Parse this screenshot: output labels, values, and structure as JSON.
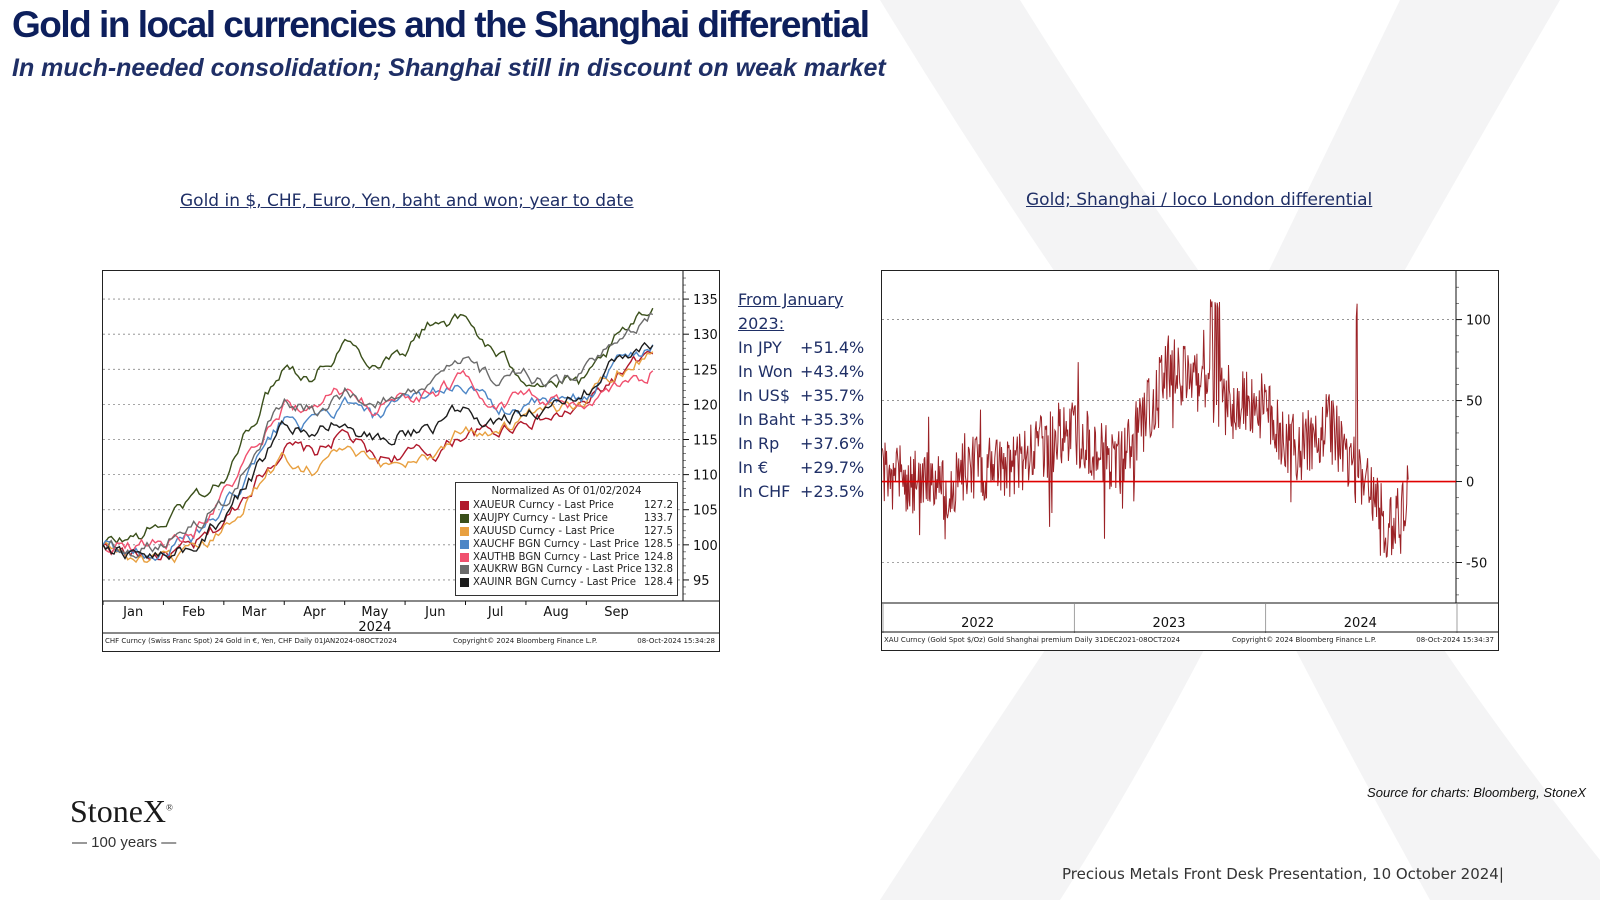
{
  "slide": {
    "title": "Gold in local currencies and the Shanghai differential",
    "subtitle": "In much-needed consolidation; Shanghai still in discount on weak market",
    "source": "Source for charts: Bloomberg, StoneX",
    "footer": "Precious Metals Front Desk Presentation, 10 October 2024|",
    "logo": "StoneX",
    "logo_tagline": "— 100 years —"
  },
  "performance": {
    "header": "From January 2023:",
    "rows": [
      {
        "label": "In JPY",
        "value": "+51.4%"
      },
      {
        "label": "In Won",
        "value": "+43.4%"
      },
      {
        "label": "In US$",
        "value": "+35.7%"
      },
      {
        "label": "In Baht",
        "value": "+35.3%"
      },
      {
        "label": "In Rp",
        "value": "+37.6%"
      },
      {
        "label": "In €",
        "value": "+29.7%"
      },
      {
        "label": "In CHF",
        "value": "+23.5%"
      }
    ]
  },
  "chart_data": [
    {
      "type": "line",
      "title": "Gold in $, CHF, Euro, Yen, baht and won; year to date",
      "x_ticks": [
        "Jan",
        "Feb",
        "Mar",
        "Apr",
        "May",
        "Jun",
        "Jul",
        "Aug",
        "Sep"
      ],
      "x_year_label": "2024",
      "y_ticks": [
        95,
        100,
        105,
        110,
        115,
        120,
        125,
        130,
        135
      ],
      "ylim": [
        92,
        139
      ],
      "grid": true,
      "legend_title": "Normalized As Of 01/02/2024",
      "legend_position": "bottom-right",
      "anchors_x": [
        0,
        0.5,
        1,
        1.5,
        2,
        2.5,
        3,
        3.5,
        4,
        4.5,
        5,
        5.5,
        6,
        6.5,
        7,
        7.5,
        8,
        8.5,
        9.1
      ],
      "series": [
        {
          "name": "XAUEUR Curncy - Last Price",
          "last": "127.2",
          "color": "#b0182b",
          "values": [
            100,
            98.5,
            98.5,
            99.5,
            103,
            109,
            114,
            113,
            116,
            112,
            113,
            113,
            116,
            116,
            118,
            118,
            120,
            124,
            127.2
          ]
        },
        {
          "name": "XAUJPY Curncy - Last Price",
          "last": "133.7",
          "color": "#3a4f1a",
          "values": [
            100,
            101,
            103,
            107,
            109,
            118,
            126,
            124,
            129,
            126,
            128,
            132,
            132,
            127,
            124,
            123,
            123,
            129,
            133.7
          ]
        },
        {
          "name": "XAUUSD Curncy - Last Price",
          "last": "127.5",
          "color": "#e8a040",
          "values": [
            100,
            98,
            97.5,
            98.5,
            102,
            108,
            112.5,
            111,
            114,
            111,
            112,
            113,
            117,
            116,
            118,
            119,
            121,
            125,
            127.5
          ]
        },
        {
          "name": "XAUCHF BGN Curncy - Last Price",
          "last": "128.5",
          "color": "#4d86c6",
          "values": [
            100,
            99,
            99,
            101,
            105,
            111,
            118,
            117,
            120,
            118,
            120,
            122,
            123,
            119,
            120,
            120,
            121,
            126,
            128.5
          ]
        },
        {
          "name": "XAUTHB BGN Curncy - Last Price",
          "last": "124.8",
          "color": "#f0506e",
          "values": [
            100,
            100,
            100.5,
            102,
            107,
            113,
            120,
            119,
            122,
            119,
            121,
            122,
            124,
            120,
            121,
            120,
            119,
            122,
            124.8
          ]
        },
        {
          "name": "XAUKRW BGN Curncy - Last Price",
          "last": "132.8",
          "color": "#6b6b6b",
          "values": [
            100,
            99.5,
            100.5,
            103,
            106,
            113,
            121,
            119,
            122,
            120,
            121,
            123,
            126,
            123,
            124,
            123,
            125,
            128,
            132.8
          ]
        },
        {
          "name": "XAUINR BGN Curncy - Last Price",
          "last": "128.4",
          "color": "#1c1c1c",
          "values": [
            100,
            98.5,
            98.5,
            100,
            104,
            110,
            117,
            115.5,
            118,
            114.5,
            116,
            117,
            120,
            117,
            119,
            120,
            122,
            126,
            128.4
          ]
        }
      ],
      "footer_left": "CHF Curncy (Swiss Franc Spot) 24 Gold in €, Yen, CHF  Daily 01JAN2024-08OCT2024",
      "footer_mid": "Copyright© 2024 Bloomberg Finance L.P.",
      "footer_right": "08-Oct-2024 15:34:28"
    },
    {
      "type": "line",
      "title": "Gold; Shanghai / loco London differential",
      "x_ticks": [
        "2022",
        "2023",
        "2024"
      ],
      "y_ticks": [
        -50,
        0,
        50,
        100
      ],
      "ylim": [
        -75,
        130
      ],
      "zero_line": true,
      "grid": true,
      "anchors_x": [
        0,
        2,
        4,
        6,
        8,
        10,
        12,
        14,
        15,
        16,
        17,
        18,
        20,
        22,
        23,
        24,
        25,
        26,
        27,
        28,
        29.5,
        31,
        32,
        33
      ],
      "anchors_y": [
        5,
        0,
        -5,
        10,
        5,
        20,
        30,
        15,
        10,
        30,
        50,
        70,
        60,
        45,
        50,
        45,
        30,
        20,
        25,
        35,
        10,
        -10,
        -25,
        -5
      ],
      "line_color": "#9b2226",
      "footer_left": "XAU Curncy (Gold Spot  $/Oz) Gold Shanghai premium  Daily 31DEC2021-08OCT2024",
      "footer_mid": "Copyright© 2024 Bloomberg Finance L.P.",
      "footer_right": "08-Oct-2024 15:34:37"
    }
  ]
}
